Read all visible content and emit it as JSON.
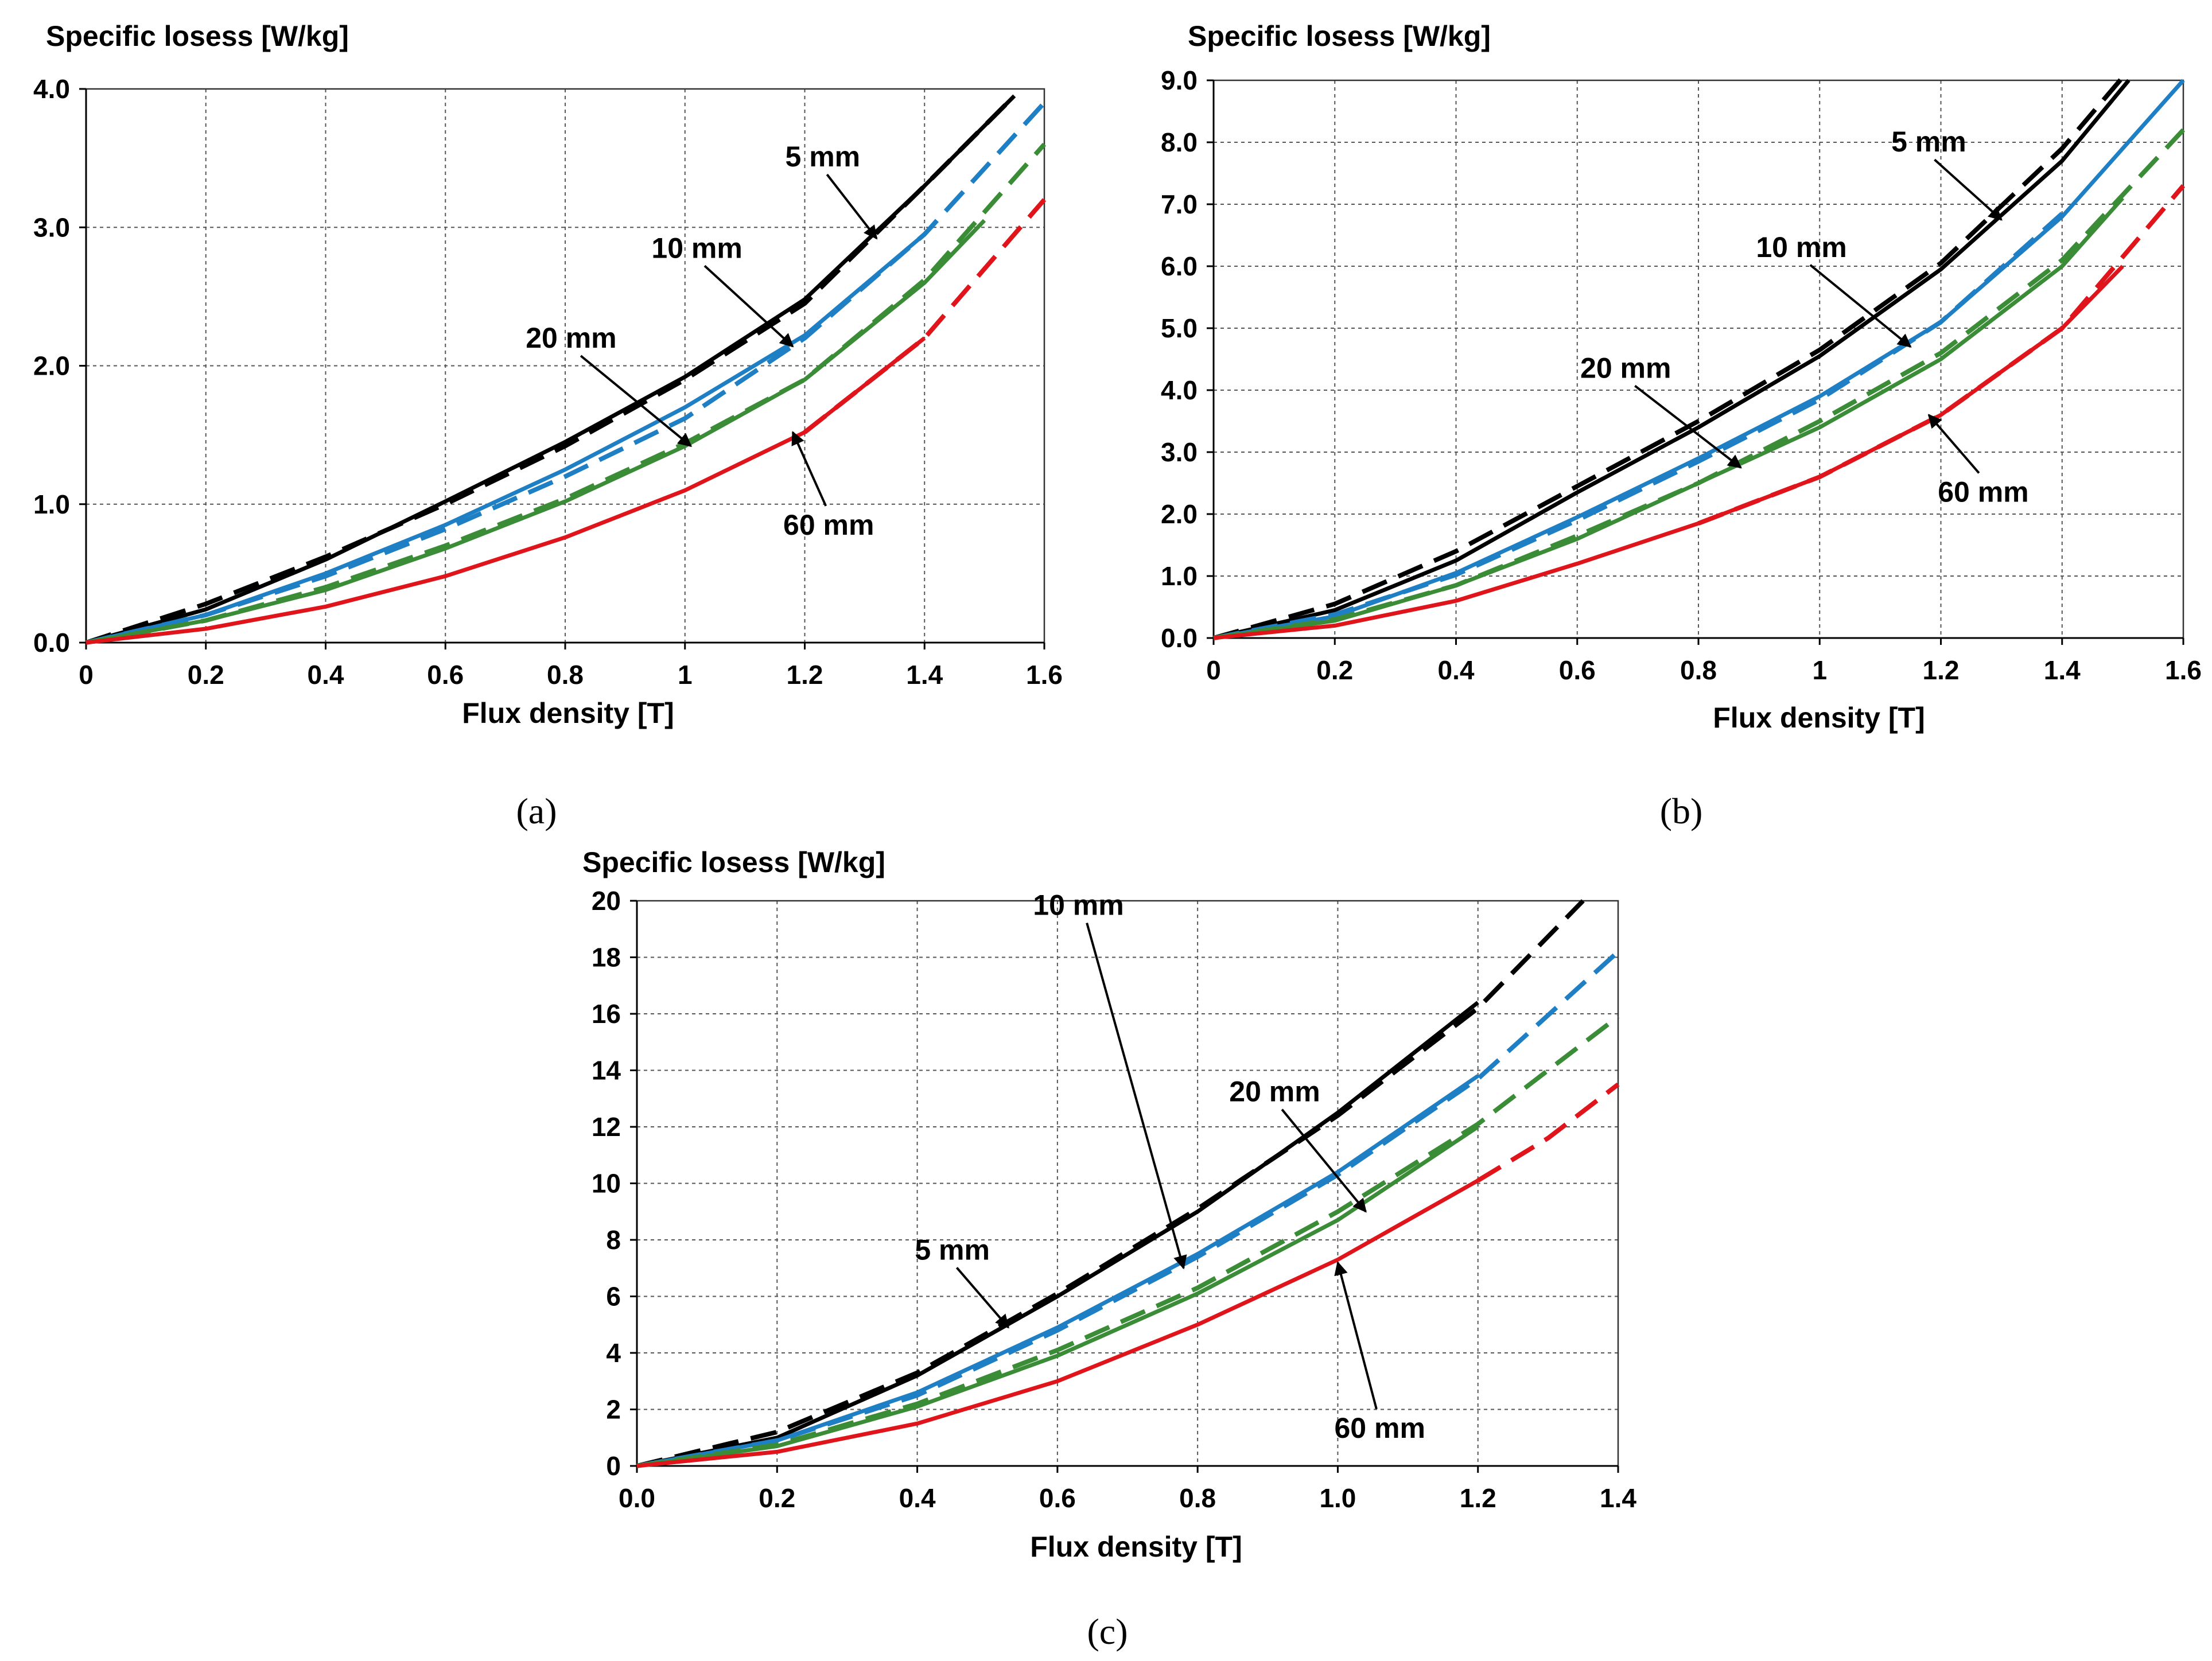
{
  "colors": {
    "5 mm": "#000000",
    "10 mm": "#1f7fc4",
    "20 mm": "#3a8c36",
    "60 mm": "#e0141b"
  },
  "chart_data": [
    {
      "type": "line",
      "panel_label": "(a)",
      "ylabel": "Specific losess [W/kg]",
      "xlabel": "Flux density [T]",
      "xlim": [
        0,
        1.6
      ],
      "ylim": [
        0,
        4.0
      ],
      "xticks": [
        "0",
        "0.2",
        "0.4",
        "0.6",
        "0.8",
        "1",
        "1.2",
        "1.4",
        "1.6"
      ],
      "yticks": [
        "0.0",
        "1.0",
        "2.0",
        "3.0",
        "4.0"
      ],
      "grid": true,
      "series": [
        {
          "name": "5 mm",
          "style": "solid",
          "x": [
            0,
            0.2,
            0.4,
            0.6,
            0.8,
            1.0,
            1.2,
            1.4,
            1.55
          ],
          "y": [
            0,
            0.24,
            0.6,
            1.02,
            1.45,
            1.92,
            2.48,
            3.3,
            3.95
          ]
        },
        {
          "name": "5 mm",
          "style": "dashed",
          "x": [
            0,
            0.2,
            0.4,
            0.6,
            0.8,
            1.0,
            1.2,
            1.4,
            1.55
          ],
          "y": [
            0,
            0.28,
            0.62,
            1.0,
            1.42,
            1.9,
            2.45,
            3.3,
            3.95
          ]
        },
        {
          "name": "10 mm",
          "style": "solid",
          "x": [
            0,
            0.2,
            0.4,
            0.6,
            0.8,
            1.0,
            1.2,
            1.4,
            1.42
          ],
          "y": [
            0,
            0.2,
            0.5,
            0.85,
            1.25,
            1.7,
            2.22,
            2.95,
            3.05
          ]
        },
        {
          "name": "10 mm",
          "style": "dashed",
          "x": [
            0,
            0.2,
            0.4,
            0.6,
            0.8,
            1.0,
            1.2,
            1.4,
            1.6
          ],
          "y": [
            0,
            0.2,
            0.48,
            0.82,
            1.2,
            1.62,
            2.2,
            2.95,
            3.9
          ]
        },
        {
          "name": "20 mm",
          "style": "solid",
          "x": [
            0,
            0.2,
            0.4,
            0.6,
            0.8,
            1.0,
            1.2,
            1.4,
            1.5
          ],
          "y": [
            0,
            0.16,
            0.38,
            0.68,
            1.02,
            1.42,
            1.9,
            2.6,
            3.05
          ]
        },
        {
          "name": "20 mm",
          "style": "dashed",
          "x": [
            0,
            0.2,
            0.4,
            0.6,
            0.8,
            1.0,
            1.2,
            1.4,
            1.6
          ],
          "y": [
            0,
            0.16,
            0.4,
            0.7,
            1.04,
            1.44,
            1.9,
            2.62,
            3.6
          ]
        },
        {
          "name": "60 mm",
          "style": "solid",
          "x": [
            0,
            0.2,
            0.4,
            0.6,
            0.8,
            1.0,
            1.2,
            1.4
          ],
          "y": [
            0,
            0.1,
            0.26,
            0.48,
            0.76,
            1.1,
            1.52,
            2.2
          ]
        },
        {
          "name": "60 mm",
          "style": "dashed",
          "x": [
            1.2,
            1.4,
            1.6
          ],
          "y": [
            1.52,
            2.2,
            3.2
          ]
        }
      ],
      "annotations": [
        {
          "text": "5 mm",
          "x": 1.23,
          "y": 3.44,
          "ax": 1.32,
          "ay": 2.92
        },
        {
          "text": "10 mm",
          "x": 1.02,
          "y": 2.78,
          "ax": 1.18,
          "ay": 2.14
        },
        {
          "text": "20 mm",
          "x": 0.81,
          "y": 2.13,
          "ax": 1.01,
          "ay": 1.42
        },
        {
          "text": "60 mm",
          "x": 1.24,
          "y": 0.78,
          "ax": 1.18,
          "ay": 1.52
        }
      ]
    },
    {
      "type": "line",
      "panel_label": "(b)",
      "ylabel": "Specific losess [W/kg]",
      "xlabel": "Flux density [T]",
      "xlim": [
        0,
        1.6
      ],
      "ylim": [
        0,
        9.0
      ],
      "xticks": [
        "0",
        "0.2",
        "0.4",
        "0.6",
        "0.8",
        "1",
        "1.2",
        "1.4",
        "1.6"
      ],
      "yticks": [
        "0.0",
        "1.0",
        "2.0",
        "3.0",
        "4.0",
        "5.0",
        "6.0",
        "7.0",
        "8.0",
        "9.0"
      ],
      "grid": true,
      "series": [
        {
          "name": "5 mm",
          "style": "solid",
          "x": [
            0,
            0.2,
            0.4,
            0.6,
            0.8,
            1.0,
            1.2,
            1.4,
            1.51
          ],
          "y": [
            0,
            0.45,
            1.25,
            2.35,
            3.4,
            4.55,
            5.95,
            7.7,
            9.0
          ]
        },
        {
          "name": "5 mm",
          "style": "dashed",
          "x": [
            0,
            0.2,
            0.4,
            0.6,
            0.8,
            1.0,
            1.2,
            1.4,
            1.5
          ],
          "y": [
            0,
            0.55,
            1.4,
            2.45,
            3.5,
            4.65,
            6.05,
            7.9,
            9.05
          ]
        },
        {
          "name": "10 mm",
          "style": "solid",
          "x": [
            0,
            0.2,
            0.4,
            0.6,
            0.8,
            1.0,
            1.2,
            1.4,
            1.6
          ],
          "y": [
            0,
            0.35,
            1.05,
            1.95,
            2.9,
            3.9,
            5.1,
            6.8,
            9.0
          ]
        },
        {
          "name": "10 mm",
          "style": "dashed",
          "x": [
            0,
            0.2,
            0.4,
            0.6,
            0.8,
            1.0,
            1.2,
            1.4
          ],
          "y": [
            0,
            0.38,
            1.02,
            1.9,
            2.85,
            3.85,
            5.1,
            6.85
          ]
        },
        {
          "name": "20 mm",
          "style": "solid",
          "x": [
            0,
            0.2,
            0.4,
            0.6,
            0.8,
            1.0,
            1.2,
            1.4,
            1.5
          ],
          "y": [
            0,
            0.28,
            0.85,
            1.6,
            2.5,
            3.4,
            4.5,
            6.0,
            7.1
          ]
        },
        {
          "name": "20 mm",
          "style": "dashed",
          "x": [
            0,
            0.2,
            0.4,
            0.6,
            0.8,
            1.0,
            1.2,
            1.4,
            1.6
          ],
          "y": [
            0,
            0.3,
            0.85,
            1.65,
            2.5,
            3.5,
            4.6,
            6.1,
            8.2
          ]
        },
        {
          "name": "60 mm",
          "style": "solid",
          "x": [
            0,
            0.2,
            0.4,
            0.6,
            0.8,
            1.0,
            1.2,
            1.4,
            1.5
          ],
          "y": [
            0,
            0.2,
            0.6,
            1.2,
            1.85,
            2.6,
            3.6,
            5.0,
            6.0
          ]
        },
        {
          "name": "60 mm",
          "style": "dashed",
          "x": [
            0.8,
            1.0,
            1.2,
            1.4,
            1.6
          ],
          "y": [
            1.85,
            2.6,
            3.6,
            5.0,
            7.3
          ]
        }
      ],
      "annotations": [
        {
          "text": "5 mm",
          "x": 1.18,
          "y": 7.85,
          "ax": 1.3,
          "ay": 6.75
        },
        {
          "text": "10 mm",
          "x": 0.97,
          "y": 6.15,
          "ax": 1.15,
          "ay": 4.7
        },
        {
          "text": "20 mm",
          "x": 0.68,
          "y": 4.2,
          "ax": 0.87,
          "ay": 2.75
        },
        {
          "text": "60 mm",
          "x": 1.27,
          "y": 2.2,
          "ax": 1.18,
          "ay": 3.6
        }
      ]
    },
    {
      "type": "line",
      "panel_label": "(c)",
      "ylabel": "Specific losess [W/kg]",
      "xlabel": "Flux density [T]",
      "xlim": [
        0,
        1.4
      ],
      "ylim": [
        0,
        20
      ],
      "xticks": [
        "0.0",
        "0.2",
        "0.4",
        "0.6",
        "0.8",
        "1.0",
        "1.2",
        "1.4"
      ],
      "yticks": [
        "0",
        "2",
        "4",
        "6",
        "8",
        "10",
        "12",
        "14",
        "16",
        "18",
        "20"
      ],
      "grid": true,
      "series": [
        {
          "name": "5 mm",
          "style": "solid",
          "x": [
            0,
            0.2,
            0.4,
            0.6,
            0.8,
            1.0,
            1.2
          ],
          "y": [
            0,
            1.0,
            3.2,
            6.0,
            9.0,
            12.5,
            16.4
          ]
        },
        {
          "name": "5 mm",
          "style": "dashed",
          "x": [
            0,
            0.2,
            0.4,
            0.6,
            0.8,
            1.0,
            1.2,
            1.35
          ],
          "y": [
            0,
            1.2,
            3.3,
            6.1,
            9.1,
            12.4,
            16.2,
            20.0
          ]
        },
        {
          "name": "10 mm",
          "style": "solid",
          "x": [
            0,
            0.2,
            0.4,
            0.6,
            0.8,
            1.0,
            1.2
          ],
          "y": [
            0,
            0.9,
            2.6,
            4.9,
            7.5,
            10.4,
            13.8
          ]
        },
        {
          "name": "10 mm",
          "style": "dashed",
          "x": [
            0,
            0.2,
            0.4,
            0.6,
            0.8,
            1.0,
            1.2,
            1.4
          ],
          "y": [
            0,
            0.9,
            2.5,
            4.8,
            7.4,
            10.3,
            13.7,
            18.2
          ]
        },
        {
          "name": "20 mm",
          "style": "solid",
          "x": [
            0,
            0.2,
            0.4,
            0.6,
            0.8,
            1.0,
            1.2
          ],
          "y": [
            0,
            0.7,
            2.1,
            3.9,
            6.1,
            8.7,
            12.0
          ]
        },
        {
          "name": "20 mm",
          "style": "dashed",
          "x": [
            0,
            0.2,
            0.4,
            0.6,
            0.8,
            1.0,
            1.2,
            1.4
          ],
          "y": [
            0,
            0.75,
            2.2,
            4.1,
            6.3,
            9.0,
            12.1,
            15.9
          ]
        },
        {
          "name": "60 mm",
          "style": "solid",
          "x": [
            0,
            0.2,
            0.4,
            0.6,
            0.8,
            1.0,
            1.2
          ],
          "y": [
            0,
            0.5,
            1.5,
            3.0,
            5.0,
            7.3,
            10.1
          ]
        },
        {
          "name": "60 mm",
          "style": "dashed",
          "x": [
            1.2,
            1.3,
            1.4
          ],
          "y": [
            10.1,
            11.6,
            13.5
          ]
        }
      ],
      "annotations": [
        {
          "text": "5 mm",
          "x": 0.45,
          "y": 7.3,
          "ax": 0.53,
          "ay": 4.9
        },
        {
          "text": "10 mm",
          "x": 0.63,
          "y": 19.5,
          "ax": 0.78,
          "ay": 7.0
        },
        {
          "text": "20 mm",
          "x": 0.91,
          "y": 12.9,
          "ax": 1.04,
          "ay": 9.0
        },
        {
          "text": "60 mm",
          "x": 1.06,
          "y": 1.0,
          "ax": 1.0,
          "ay": 7.2
        }
      ]
    }
  ]
}
